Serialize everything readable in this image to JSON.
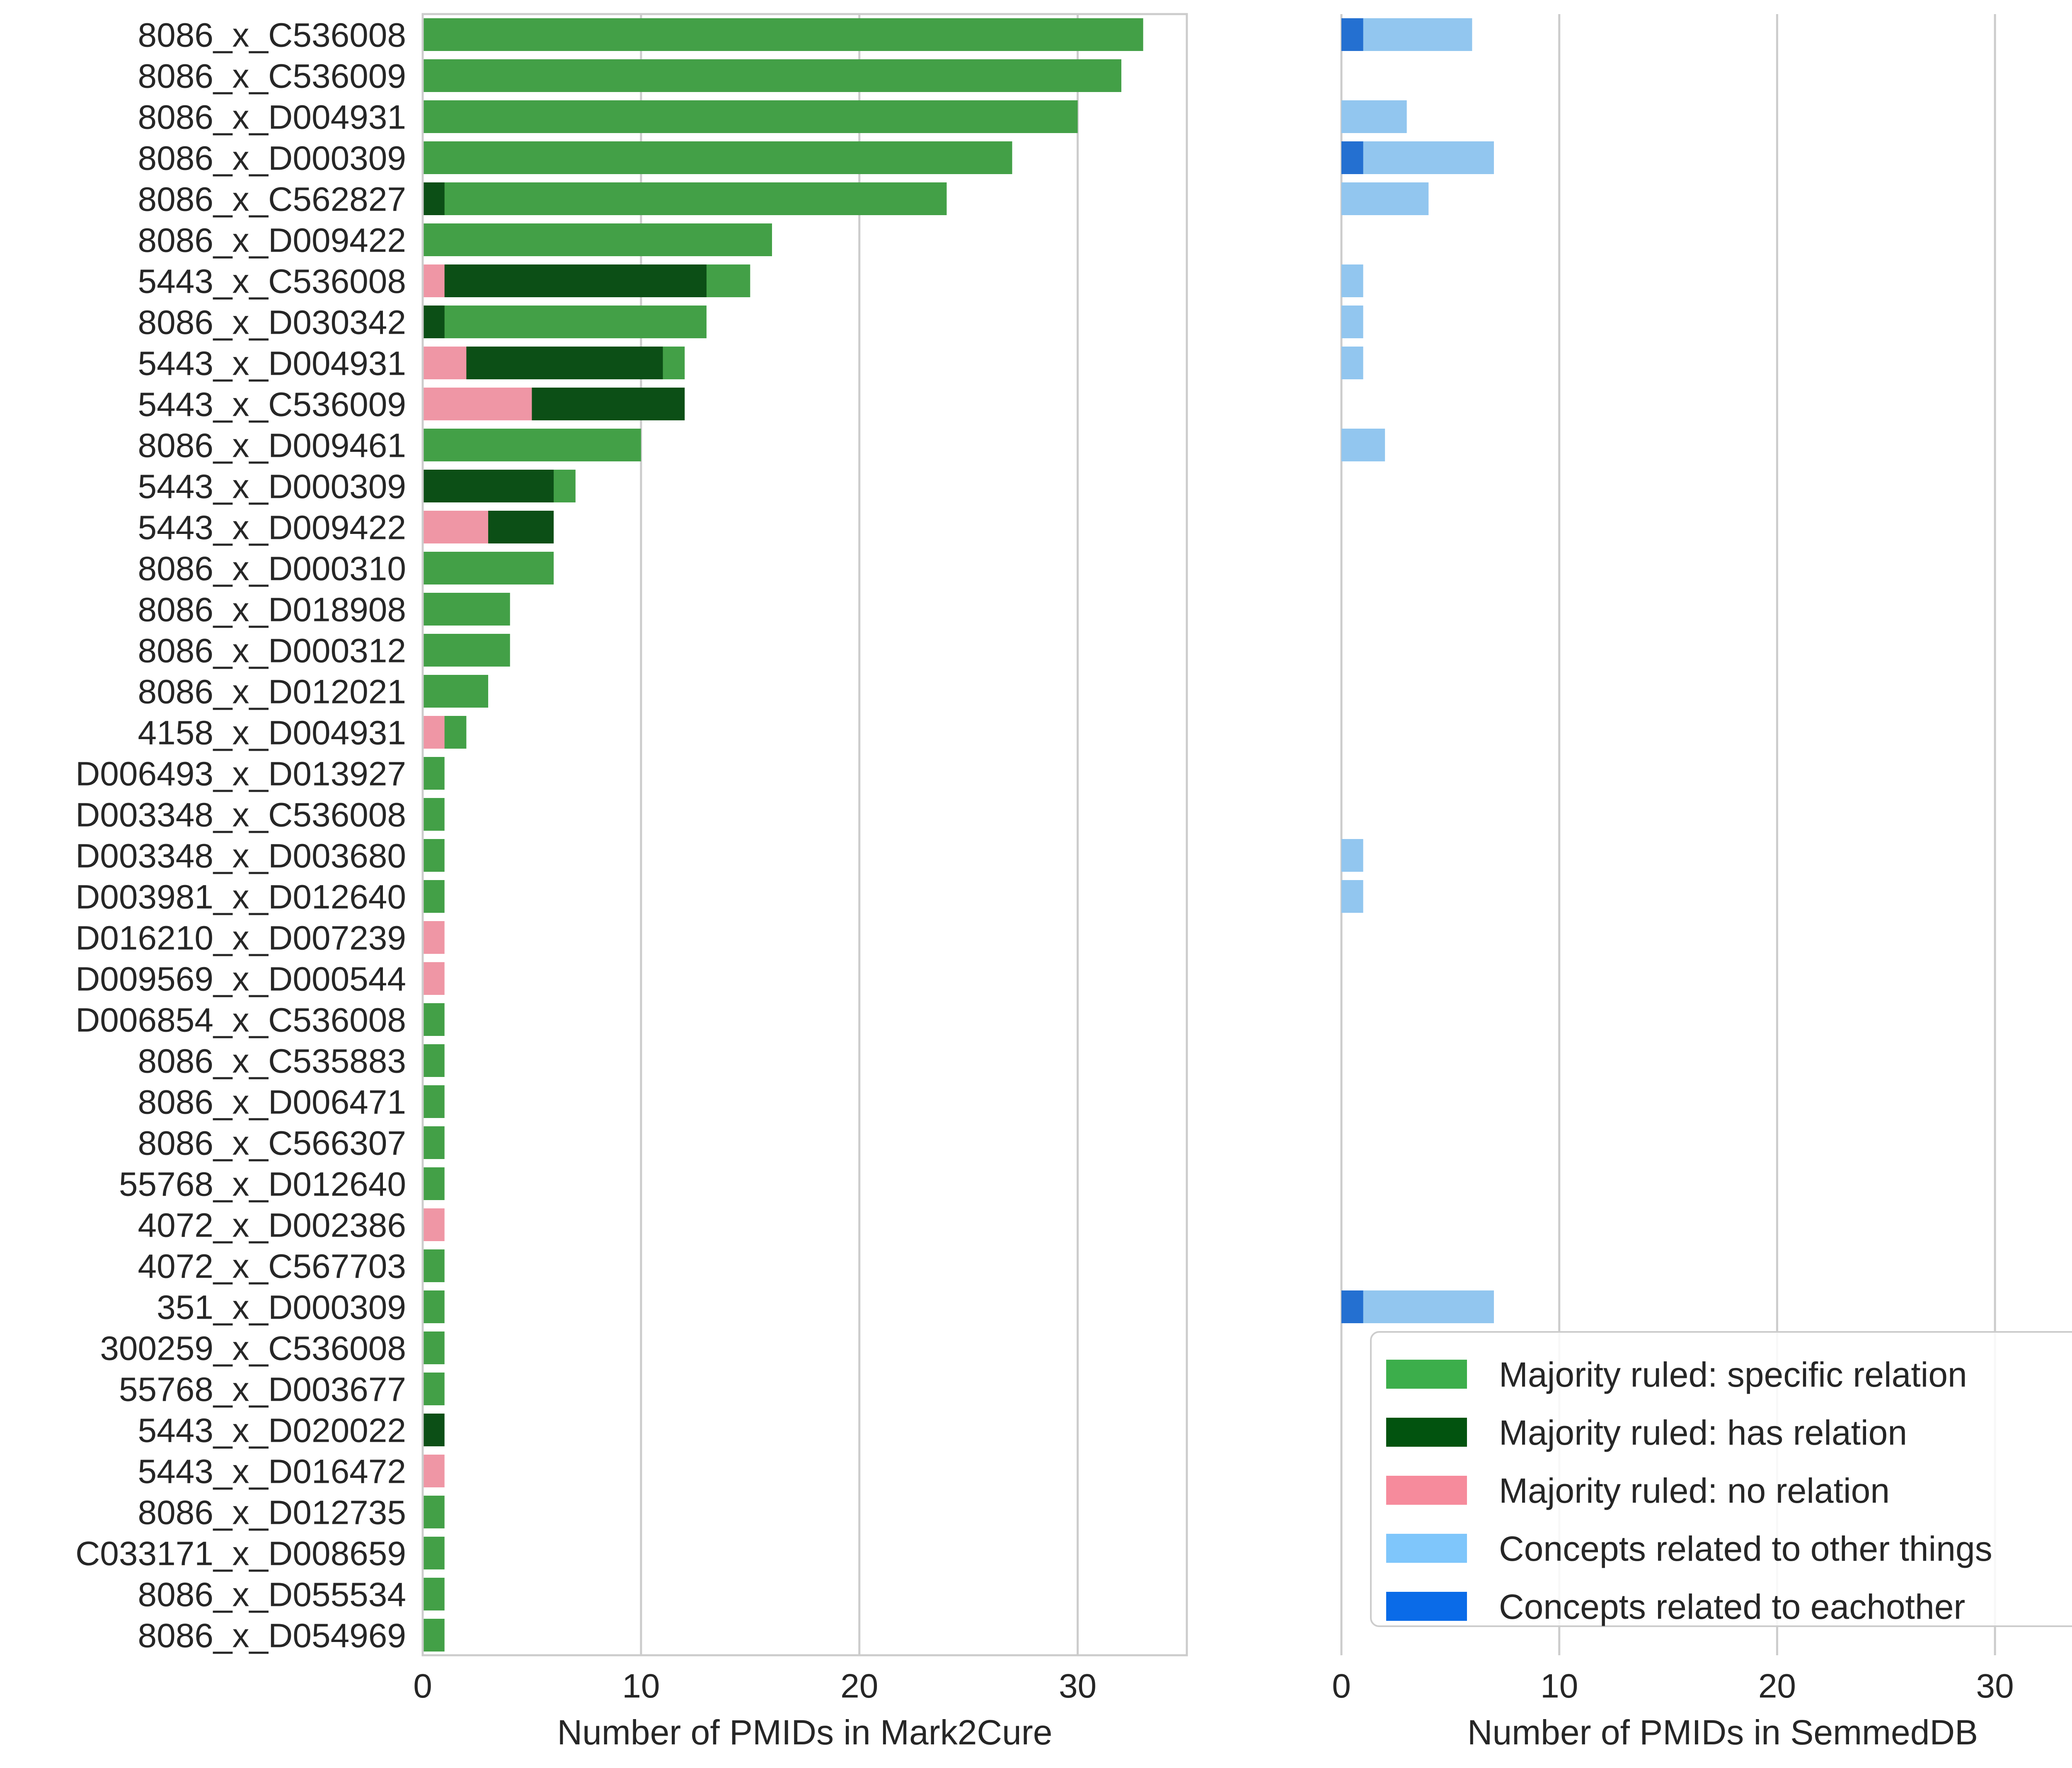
{
  "chart_data": [
    {
      "type": "bar",
      "orientation": "horizontal",
      "stacked": true,
      "xlabel": "Number of PMIDs in Mark2Cure",
      "ylabel": "",
      "xlim": [
        0,
        35
      ],
      "xticks": [
        0,
        10,
        20,
        30
      ],
      "grid": "x",
      "categories": [
        "8086_x_C536008",
        "8086_x_C536009",
        "8086_x_D004931",
        "8086_x_D000309",
        "8086_x_C562827",
        "8086_x_D009422",
        "5443_x_C536008",
        "8086_x_D030342",
        "5443_x_D004931",
        "5443_x_C536009",
        "8086_x_D009461",
        "5443_x_D000309",
        "5443_x_D009422",
        "8086_x_D000310",
        "8086_x_D018908",
        "8086_x_D000312",
        "8086_x_D012021",
        "4158_x_D004931",
        "D006493_x_D013927",
        "D003348_x_C536008",
        "D003348_x_D003680",
        "D003981_x_D012640",
        "D016210_x_D007239",
        "D009569_x_D000544",
        "D006854_x_C536008",
        "8086_x_C535883",
        "8086_x_D006471",
        "8086_x_C566307",
        "55768_x_D012640",
        "4072_x_D002386",
        "4072_x_C567703",
        "351_x_D000309",
        "300259_x_C536008",
        "55768_x_D003677",
        "5443_x_D020022",
        "5443_x_D016472",
        "8086_x_D012735",
        "C033171_x_D008659",
        "8086_x_D055534",
        "8086_x_D054969"
      ],
      "series": [
        {
          "name": "Majority ruled: specific relation",
          "color": "#43a047",
          "cumulative": true,
          "values": [
            33,
            32,
            30,
            27,
            24,
            16,
            15,
            13,
            12,
            0,
            10,
            7,
            0,
            6,
            4,
            4,
            3,
            2,
            1,
            1,
            1,
            1,
            0,
            0,
            1,
            1,
            1,
            1,
            1,
            0,
            1,
            1,
            1,
            1,
            0,
            0,
            1,
            1,
            1,
            1
          ]
        },
        {
          "name": "Majority ruled: has relation",
          "color": "#0c4f16",
          "cumulative": true,
          "values": [
            0,
            0,
            0,
            0,
            1,
            0,
            13,
            1,
            11,
            12,
            0,
            6,
            6,
            0,
            0,
            0,
            0,
            0,
            0,
            0,
            0,
            0,
            0,
            0,
            0,
            0,
            0,
            0,
            0,
            0,
            0,
            0,
            0,
            0,
            1,
            0,
            0,
            0,
            0,
            0
          ]
        },
        {
          "name": "Majority ruled: no relation",
          "color": "#ef96a5",
          "cumulative": true,
          "values": [
            0,
            0,
            0,
            0,
            0,
            0,
            1,
            0,
            2,
            5,
            0,
            0,
            3,
            0,
            0,
            0,
            0,
            1,
            0,
            0,
            0,
            0,
            1,
            1,
            0,
            0,
            0,
            0,
            0,
            1,
            0,
            0,
            0,
            0,
            0,
            1,
            0,
            0,
            0,
            0
          ]
        }
      ]
    },
    {
      "type": "bar",
      "orientation": "horizontal",
      "stacked": true,
      "xlabel": "Number of PMIDs in SemmedDB",
      "ylabel": "",
      "xlim": [
        0,
        35
      ],
      "xticks": [
        0,
        10,
        20,
        30
      ],
      "grid": "x",
      "series": [
        {
          "name": "Concepts related to other things",
          "color": "#92c6ef",
          "cumulative": true,
          "values": [
            6,
            0,
            3,
            7,
            4,
            0,
            1,
            1,
            1,
            0,
            2,
            0,
            0,
            0,
            0,
            0,
            0,
            0,
            0,
            0,
            1,
            1,
            0,
            0,
            0,
            0,
            0,
            0,
            0,
            0,
            0,
            7,
            0,
            0,
            0,
            0,
            0,
            0,
            0,
            0
          ]
        },
        {
          "name": "Concepts related to eachother",
          "color": "#2470d1",
          "cumulative": true,
          "values": [
            1,
            0,
            0,
            1,
            0,
            0,
            0,
            0,
            0,
            0,
            0,
            0,
            0,
            0,
            0,
            0,
            0,
            0,
            0,
            0,
            0,
            0,
            0,
            0,
            0,
            0,
            0,
            0,
            0,
            0,
            0,
            1,
            0,
            0,
            0,
            0,
            0,
            0,
            0,
            0
          ]
        }
      ]
    }
  ],
  "legend": {
    "placement": "lower-right",
    "items": [
      {
        "label": "Majority ruled: specific relation",
        "color": "#3cae4b"
      },
      {
        "label": "Majority ruled: has relation",
        "color": "#02530f"
      },
      {
        "label": "Majority ruled: no relation",
        "color": "#f68b9c"
      },
      {
        "label": "Concepts related to other things",
        "color": "#7fc6fb"
      },
      {
        "label": "Concepts related to eachother",
        "color": "#0a6be8"
      }
    ]
  }
}
